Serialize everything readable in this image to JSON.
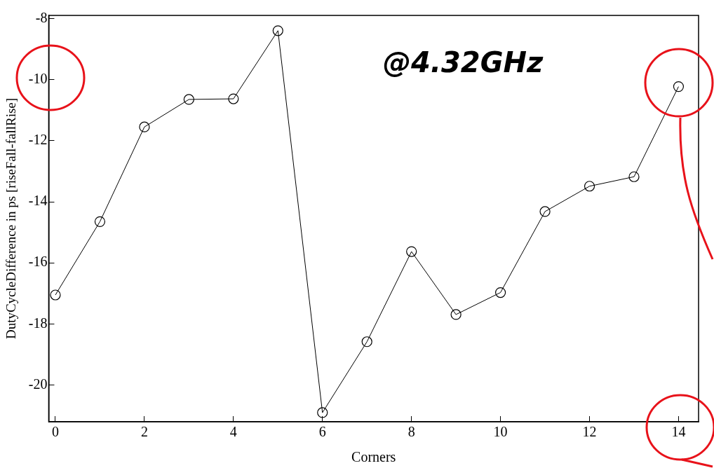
{
  "chart_data": {
    "type": "line",
    "xlabel": "Corners",
    "ylabel": "DutyCycleDifference in ps [riseFall-fallRise]",
    "annotations": [
      "@4.32GHz"
    ],
    "x": [
      0,
      1,
      2,
      3,
      4,
      5,
      6,
      7,
      8,
      9,
      10,
      11,
      12,
      13,
      14
    ],
    "series": [
      {
        "color": "#000000",
        "values": [
          -17.05,
          -14.65,
          -11.55,
          -10.65,
          -10.63,
          -8.4,
          -20.9,
          -18.58,
          -15.63,
          -17.69,
          -16.97,
          -14.32,
          -13.49,
          -13.18,
          -10.23
        ]
      }
    ],
    "xlim": [
      -0.15,
      14.45
    ],
    "xticks": [
      0,
      2,
      4,
      6,
      8,
      10,
      12,
      14
    ],
    "ylim": [
      -21.2,
      -7.9
    ],
    "yticks": [
      -20,
      -18,
      -16,
      -14,
      -12,
      -10,
      -8
    ],
    "grid": false,
    "legend": false,
    "marker": "circle",
    "line_style": "solid"
  }
}
